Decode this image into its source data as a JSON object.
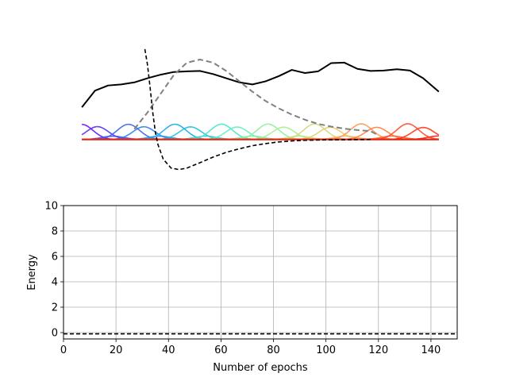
{
  "chart_data": [
    {
      "type": "line",
      "title": "",
      "axes_visible": false,
      "xlim": [
        0,
        150
      ],
      "ylim": [
        -2.0,
        4.5
      ],
      "series": [
        {
          "style": "solid",
          "color": "#000000",
          "x": [
            7,
            12,
            17,
            22,
            27,
            32,
            37,
            42,
            47,
            52,
            57,
            62,
            67,
            72,
            77,
            82,
            87,
            92,
            97,
            102,
            107,
            112,
            117,
            122,
            127,
            132,
            137,
            143
          ],
          "y": [
            1.55,
            2.35,
            2.6,
            2.65,
            2.75,
            2.95,
            3.12,
            3.25,
            3.28,
            3.3,
            3.15,
            2.95,
            2.75,
            2.65,
            2.8,
            3.05,
            3.35,
            3.2,
            3.28,
            3.68,
            3.7,
            3.4,
            3.3,
            3.32,
            3.38,
            3.32,
            2.95,
            2.3
          ]
        },
        {
          "style": "dashed",
          "color": "#808080",
          "x": [
            27,
            32,
            37,
            42,
            47,
            52,
            57,
            62,
            67,
            72,
            77,
            82,
            87,
            92,
            97,
            102,
            107,
            112,
            117,
            120
          ],
          "y": [
            0.5,
            1.3,
            2.2,
            3.1,
            3.7,
            3.85,
            3.7,
            3.3,
            2.8,
            2.3,
            1.85,
            1.5,
            1.2,
            0.95,
            0.75,
            0.62,
            0.52,
            0.45,
            0.4,
            0.2
          ]
        },
        {
          "style": "dashed",
          "color": "#000000",
          "x": [
            31,
            32,
            33,
            34,
            35,
            36,
            38,
            41,
            44,
            47,
            52,
            57,
            62,
            67,
            72,
            77,
            82,
            87,
            92,
            100,
            110,
            117
          ],
          "y": [
            4.35,
            3.6,
            2.5,
            1.3,
            0.35,
            -0.25,
            -0.95,
            -1.38,
            -1.45,
            -1.38,
            -1.12,
            -0.85,
            -0.62,
            -0.45,
            -0.3,
            -0.2,
            -0.12,
            -0.07,
            -0.04,
            -0.02,
            -0.01,
            0.0
          ]
        }
      ],
      "basis_functions": {
        "x_range": [
          7,
          143
        ],
        "count": 24,
        "colormap": "rainbow",
        "color_stops": [
          "#6a11f5",
          "#2f6fe8",
          "#16b9e3",
          "#5ef0c2",
          "#a9f08e",
          "#f2c66d",
          "#fe6d35",
          "#ff1c0e"
        ],
        "center_range": [
          7,
          143
        ],
        "width": 4.2,
        "amplitude_range": [
          0.15,
          0.85
        ],
        "baseline": 0
      }
    },
    {
      "type": "line",
      "title": "",
      "xlabel": "Number of epochs",
      "ylabel": "Energy",
      "xlim": [
        0,
        150
      ],
      "ylim": [
        -0.5,
        10
      ],
      "xticks": [
        0,
        20,
        40,
        60,
        80,
        100,
        120,
        140
      ],
      "yticks": [
        0,
        2,
        4,
        6,
        8,
        10
      ],
      "xtick_labels": [
        "0",
        "20",
        "40",
        "60",
        "80",
        "100",
        "120",
        "140"
      ],
      "ytick_labels": [
        "0",
        "2",
        "4",
        "6",
        "8",
        "10"
      ],
      "grid": true,
      "series": [
        {
          "style": "dashed",
          "color": "#000000",
          "x": [
            0,
            150
          ],
          "y": [
            -0.1,
            -0.1
          ]
        }
      ]
    }
  ]
}
